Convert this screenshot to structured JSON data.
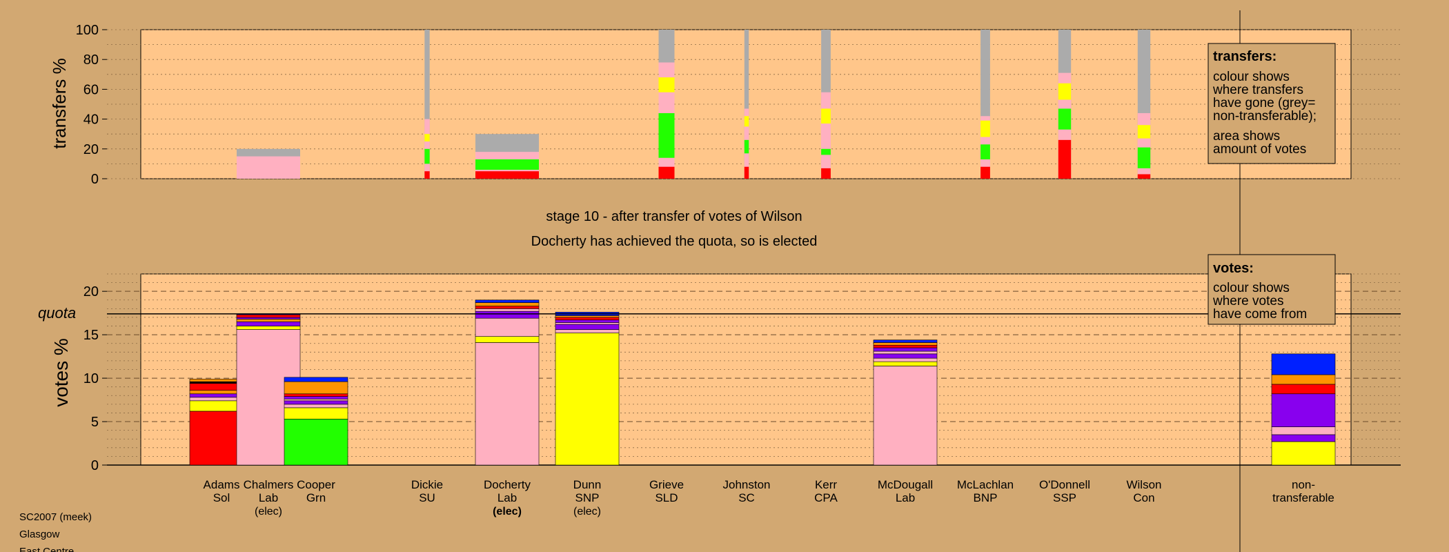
{
  "colors": {
    "page_bg": "#D2A872",
    "panel_bg": "#FFC68A",
    "grey": "#ABABAB",
    "pink": "#FFB0C1",
    "yellow": "#FFFF00",
    "green": "#22FF00",
    "red": "#FF0000",
    "purple": "#8800EE",
    "orange": "#FF9400",
    "blue": "#0020FF",
    "black": "#000000"
  },
  "texts": {
    "stage": "stage 10 - after transfer of votes of Wilson",
    "status": "Docherty has achieved the quota, so is elected",
    "quota_label": "quota",
    "footer": [
      "SC2007 (meek)",
      "Glasgow",
      "East Centre"
    ]
  },
  "legend_transfers": {
    "title": "transfers:",
    "body1": [
      "colour shows",
      "where transfers",
      "have gone (grey=",
      "non-transferable);"
    ],
    "body2": [
      "area shows",
      "amount of votes"
    ]
  },
  "legend_votes": {
    "title": "votes:",
    "body": [
      "colour shows",
      "where votes",
      "have come from"
    ]
  },
  "chart_data": [
    {
      "type": "bar",
      "ylabel": "transfers %",
      "ylim": [
        0,
        100
      ],
      "yticks": [
        0,
        20,
        40,
        60,
        80,
        100
      ],
      "grid": true,
      "columns": [
        {
          "name": "Adams",
          "width": 0,
          "segments": []
        },
        {
          "name": "Chalmers",
          "width": 1,
          "segments": [
            [
              "grey",
              0,
              20
            ],
            [
              "pink",
              0,
              15
            ]
          ]
        },
        {
          "name": "Cooper",
          "width": 0,
          "segments": []
        },
        {
          "name": "Dickie",
          "width": 0.08,
          "segments": [
            [
              "grey",
              0,
              100
            ],
            [
              "pink",
              0,
              40
            ],
            [
              "yellow",
              25,
              30
            ],
            [
              "pink",
              20,
              25
            ],
            [
              "green",
              10,
              20
            ],
            [
              "red",
              0,
              5
            ]
          ]
        },
        {
          "name": "Docherty",
          "width": 1,
          "segments": [
            [
              "grey",
              0,
              30
            ],
            [
              "pink",
              0,
              18
            ],
            [
              "green",
              6,
              13
            ],
            [
              "red",
              0,
              5
            ]
          ]
        },
        {
          "name": "Dunn",
          "width": 0,
          "segments": []
        },
        {
          "name": "Grieve",
          "width": 0.25,
          "segments": [
            [
              "grey",
              0,
              100
            ],
            [
              "pink",
              0,
              78
            ],
            [
              "yellow",
              58,
              68
            ],
            [
              "pink",
              44,
              57
            ],
            [
              "green",
              14,
              44
            ],
            [
              "red",
              0,
              8
            ]
          ]
        },
        {
          "name": "Johnston",
          "width": 0.07,
          "segments": [
            [
              "grey",
              0,
              100
            ],
            [
              "pink",
              0,
              47
            ],
            [
              "yellow",
              35,
              42
            ],
            [
              "pink",
              26,
              34
            ],
            [
              "green",
              17,
              26
            ],
            [
              "red",
              0,
              8
            ]
          ]
        },
        {
          "name": "Kerr",
          "width": 0.15,
          "segments": [
            [
              "grey",
              0,
              100
            ],
            [
              "pink",
              0,
              58
            ],
            [
              "yellow",
              37,
              47
            ],
            [
              "pink",
              20,
              37
            ],
            [
              "green",
              16,
              20
            ],
            [
              "red",
              0,
              7
            ]
          ]
        },
        {
          "name": "McDougall",
          "width": 0,
          "segments": []
        },
        {
          "name": "McLachlan",
          "width": 0.15,
          "segments": [
            [
              "grey",
              0,
              100
            ],
            [
              "pink",
              0,
              42
            ],
            [
              "yellow",
              28,
              39
            ],
            [
              "pink",
              23,
              28
            ],
            [
              "green",
              13,
              23
            ],
            [
              "red",
              0,
              8
            ]
          ]
        },
        {
          "name": "O'Donnell",
          "width": 0.2,
          "segments": [
            [
              "grey",
              0,
              100
            ],
            [
              "pink",
              0,
              71
            ],
            [
              "yellow",
              53,
              64
            ],
            [
              "pink",
              47,
              53
            ],
            [
              "green",
              33,
              47
            ],
            [
              "red",
              0,
              26
            ]
          ]
        },
        {
          "name": "Wilson",
          "width": 0.2,
          "segments": [
            [
              "grey",
              0,
              100
            ],
            [
              "pink",
              0,
              44
            ],
            [
              "yellow",
              27,
              36
            ],
            [
              "pink",
              21,
              27
            ],
            [
              "green",
              7,
              21
            ],
            [
              "red",
              0,
              3
            ]
          ]
        }
      ]
    },
    {
      "type": "bar",
      "ylabel": "votes %",
      "ylim": [
        0,
        22
      ],
      "yticks": [
        0,
        5,
        10,
        15,
        20
      ],
      "quota": 17.4,
      "grid": true,
      "candidates": [
        {
          "name": "Adams",
          "party": "Sol",
          "note": "",
          "note_bold": false,
          "segments": [
            [
              "red",
              6.2
            ],
            [
              "yellow",
              1.2
            ],
            [
              "pink",
              0.4
            ],
            [
              "purple",
              0.4
            ],
            [
              "orange",
              0.4
            ],
            [
              "red",
              0.8
            ],
            [
              "black",
              0.2
            ],
            [
              "orange",
              0.3
            ]
          ]
        },
        {
          "name": "Chalmers",
          "party": "Lab",
          "note": "(elec)",
          "note_bold": false,
          "segments": [
            [
              "pink",
              15.6
            ],
            [
              "yellow",
              0.4
            ],
            [
              "purple",
              0.5
            ],
            [
              "orange",
              0.3
            ],
            [
              "purple",
              0.2
            ],
            [
              "red",
              0.3
            ],
            [
              "blue",
              0.1
            ]
          ]
        },
        {
          "name": "Cooper",
          "party": "Grn",
          "note": "",
          "note_bold": false,
          "segments": [
            [
              "green",
              5.3
            ],
            [
              "yellow",
              1.3
            ],
            [
              "pink",
              0.4
            ],
            [
              "purple",
              0.4
            ],
            [
              "pink",
              0.2
            ],
            [
              "purple",
              0.3
            ],
            [
              "red",
              0.3
            ],
            [
              "orange",
              1.4
            ],
            [
              "blue",
              0.5
            ]
          ]
        },
        {
          "name": "Dickie",
          "party": "SU",
          "note": "",
          "note_bold": false,
          "segments": []
        },
        {
          "name": "Docherty",
          "party": "Lab",
          "note": "(elec)",
          "note_bold": true,
          "segments": [
            [
              "pink",
              14.1
            ],
            [
              "yellow",
              0.7
            ],
            [
              "pink",
              2.1
            ],
            [
              "purple",
              0.8
            ],
            [
              "pink",
              0.3
            ],
            [
              "red",
              0.3
            ],
            [
              "orange",
              0.4
            ],
            [
              "blue",
              0.3
            ]
          ]
        },
        {
          "name": "Dunn",
          "party": "SNP",
          "note": "(elec)",
          "note_bold": false,
          "segments": [
            [
              "yellow",
              15.2
            ],
            [
              "pink",
              0.4
            ],
            [
              "purple",
              0.6
            ],
            [
              "pink",
              0.2
            ],
            [
              "purple",
              0.3
            ],
            [
              "red",
              0.3
            ],
            [
              "orange",
              0.2
            ],
            [
              "blue",
              0.4
            ]
          ]
        },
        {
          "name": "Grieve",
          "party": "SLD",
          "note": "",
          "note_bold": false,
          "segments": []
        },
        {
          "name": "Johnston",
          "party": "SC",
          "note": "",
          "note_bold": false,
          "segments": []
        },
        {
          "name": "Kerr",
          "party": "CPA",
          "note": "",
          "note_bold": false,
          "segments": []
        },
        {
          "name": "McDougall",
          "party": "Lab",
          "note": "",
          "note_bold": false,
          "segments": [
            [
              "pink",
              11.4
            ],
            [
              "yellow",
              0.5
            ],
            [
              "pink",
              0.4
            ],
            [
              "purple",
              0.5
            ],
            [
              "pink",
              0.3
            ],
            [
              "purple",
              0.4
            ],
            [
              "red",
              0.3
            ],
            [
              "orange",
              0.3
            ],
            [
              "blue",
              0.3
            ]
          ]
        },
        {
          "name": "McLachlan",
          "party": "BNP",
          "note": "",
          "note_bold": false,
          "segments": []
        },
        {
          "name": "O'Donnell",
          "party": "SSP",
          "note": "",
          "note_bold": false,
          "segments": []
        },
        {
          "name": "Wilson",
          "party": "Con",
          "note": "",
          "note_bold": false,
          "segments": []
        }
      ],
      "nontransferable": {
        "label1": "non-",
        "label2": "transferable",
        "segments": [
          [
            "yellow",
            2.7
          ],
          [
            "purple",
            0.8
          ],
          [
            "pink",
            0.9
          ],
          [
            "purple",
            3.8
          ],
          [
            "red",
            1.1
          ],
          [
            "orange",
            1.1
          ],
          [
            "blue",
            2.4
          ]
        ]
      }
    }
  ]
}
